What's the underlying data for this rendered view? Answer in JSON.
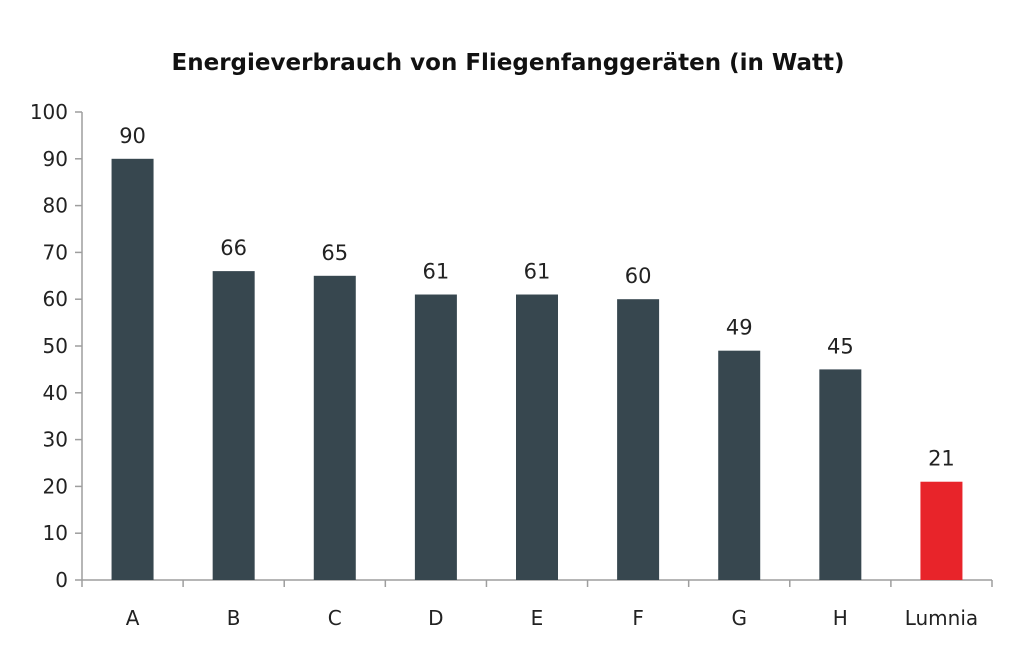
{
  "chart_data": {
    "type": "bar",
    "title": "Energieverbrauch von Fliegenfanggeräten (in Watt)",
    "xlabel": "",
    "ylabel": "",
    "categories": [
      "A",
      "B",
      "C",
      "D",
      "E",
      "F",
      "G",
      "H",
      "Lumnia"
    ],
    "values": [
      90,
      66,
      65,
      61,
      61,
      60,
      49,
      45,
      21
    ],
    "data_labels": [
      "90",
      "66",
      "65",
      "61",
      "61",
      "60",
      "49",
      "45",
      "21"
    ],
    "ylim": [
      0,
      100
    ],
    "yticks": [
      0,
      10,
      20,
      30,
      40,
      50,
      60,
      70,
      80,
      90,
      100
    ],
    "ytick_labels": [
      "0",
      "10",
      "20",
      "30",
      "40",
      "50",
      "60",
      "70",
      "80",
      "90",
      "100"
    ],
    "grid": false,
    "legend": "none",
    "colors": {
      "default_bar": "#37474f",
      "highlight_bar": "#e8242a",
      "axis": "#9e9e9e"
    },
    "highlight_category": "Lumnia"
  }
}
